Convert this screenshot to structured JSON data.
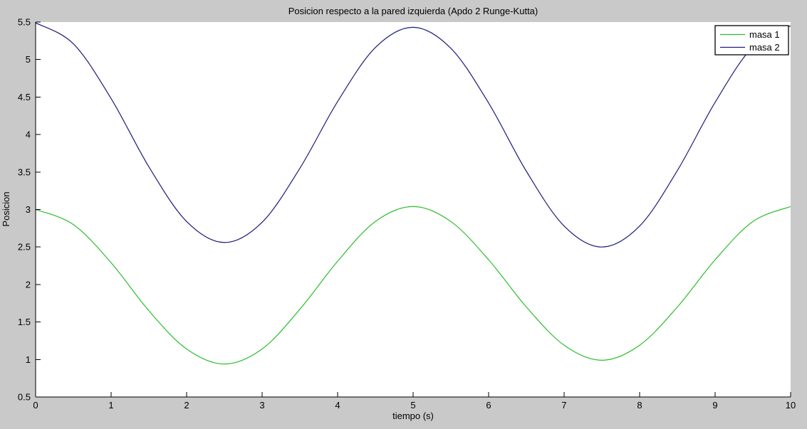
{
  "figure": {
    "background_color": "#c9c9c9",
    "plot_background_color": "#ffffff",
    "axis_color": "#000000"
  },
  "chart_data": {
    "type": "line",
    "title": "Posicion respecto a la pared izquierda (Apdo 2 Runge-Kutta)",
    "xlabel": "tiempo (s)",
    "ylabel": "Posicion",
    "xlim": [
      0,
      10
    ],
    "ylim": [
      0.5,
      5.5
    ],
    "x_tick_labels": [
      "0",
      "1",
      "2",
      "3",
      "4",
      "5",
      "6",
      "7",
      "8",
      "9",
      "10"
    ],
    "y_tick_labels": [
      "0.5",
      "1",
      "1.5",
      "2",
      "2.5",
      "3",
      "3.5",
      "4",
      "4.5",
      "5",
      "5.5"
    ],
    "grid": false,
    "legend_position": "top-right",
    "x": [
      0,
      0.5,
      1,
      1.5,
      2,
      2.5,
      3,
      3.5,
      4,
      4.5,
      5,
      5.5,
      6,
      6.5,
      7,
      7.5,
      8,
      8.5,
      9,
      9.5,
      10
    ],
    "series": [
      {
        "name": "masa 1",
        "color": "#2ebd2e",
        "values": [
          3.0,
          2.8,
          2.29,
          1.65,
          1.14,
          0.94,
          1.14,
          1.67,
          2.31,
          2.84,
          3.04,
          2.84,
          2.33,
          1.7,
          1.19,
          0.99,
          1.19,
          1.7,
          2.33,
          2.84,
          3.04
        ]
      },
      {
        "name": "masa 2",
        "color": "#1c1c7a",
        "values": [
          5.49,
          5.21,
          4.48,
          3.57,
          2.84,
          2.56,
          2.83,
          3.55,
          4.44,
          5.16,
          5.43,
          5.15,
          4.42,
          3.51,
          2.78,
          2.5,
          2.78,
          3.52,
          4.43,
          5.17,
          5.45
        ]
      }
    ]
  },
  "legend": {
    "items": [
      {
        "label": "masa 1",
        "color": "#2ebd2e"
      },
      {
        "label": "masa 2",
        "color": "#1c1c7a"
      }
    ]
  }
}
